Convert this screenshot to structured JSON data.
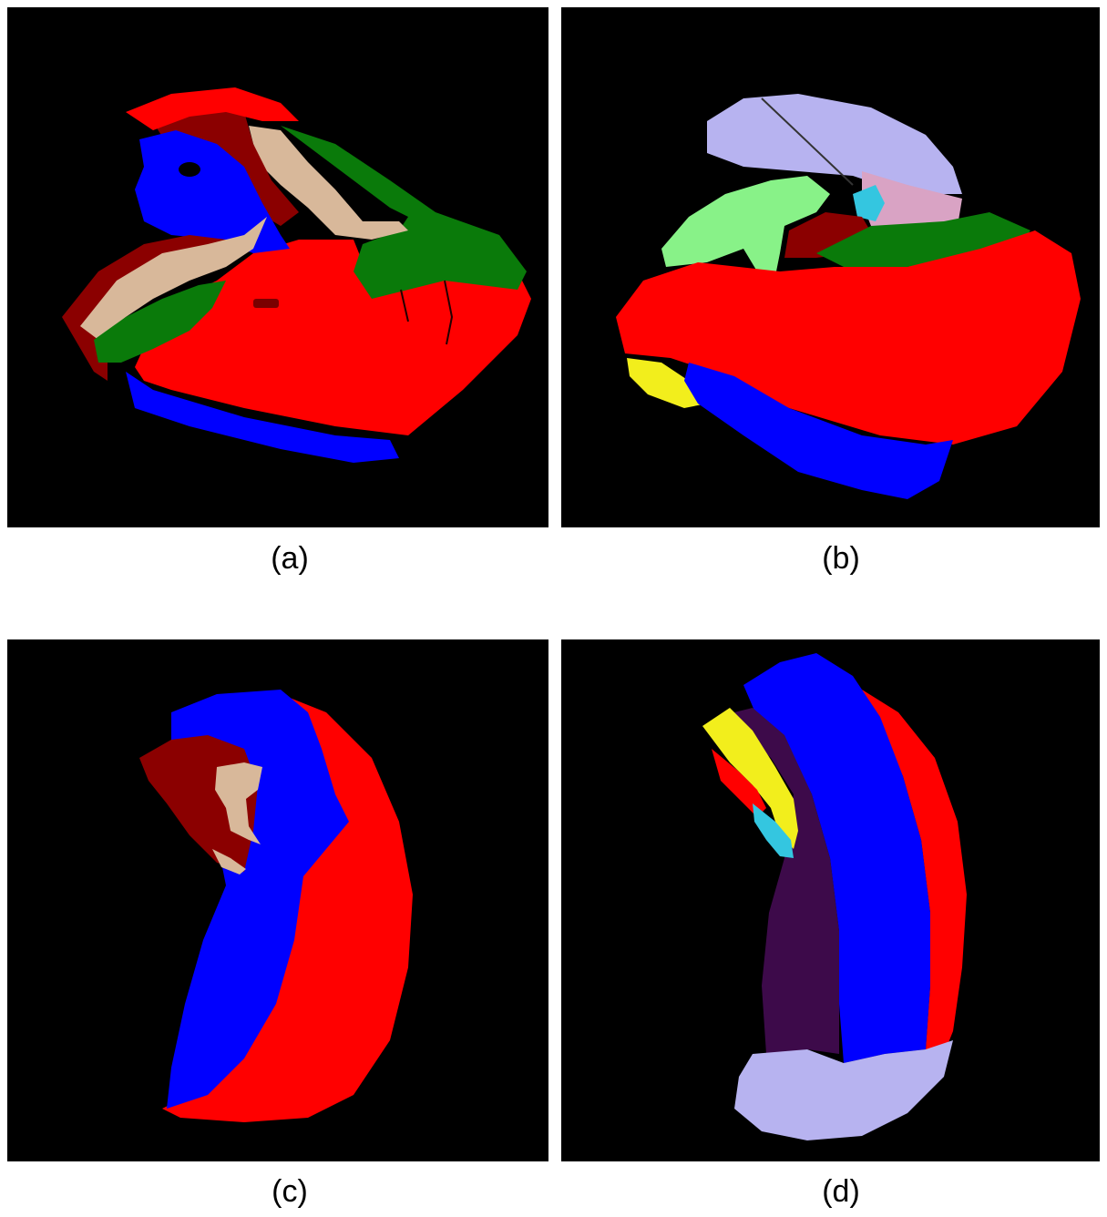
{
  "panels": [
    {
      "id": "a",
      "caption": "(a)"
    },
    {
      "id": "b",
      "caption": "(b)"
    },
    {
      "id": "c",
      "caption": "(c)"
    },
    {
      "id": "d",
      "caption": "(d)"
    }
  ],
  "colors": {
    "background": "#000000",
    "red": "#ff0000",
    "dark_red": "#8b0000",
    "blue": "#0000ff",
    "green": "#0a7a0a",
    "tan": "#d8b89a",
    "lavender": "#b7b3f0",
    "light_green": "#88f288",
    "pink": "#d9a3c4",
    "cyan": "#34c6e0",
    "yellow": "#f2ee1c",
    "dark_purple": "#3d0a4a"
  }
}
